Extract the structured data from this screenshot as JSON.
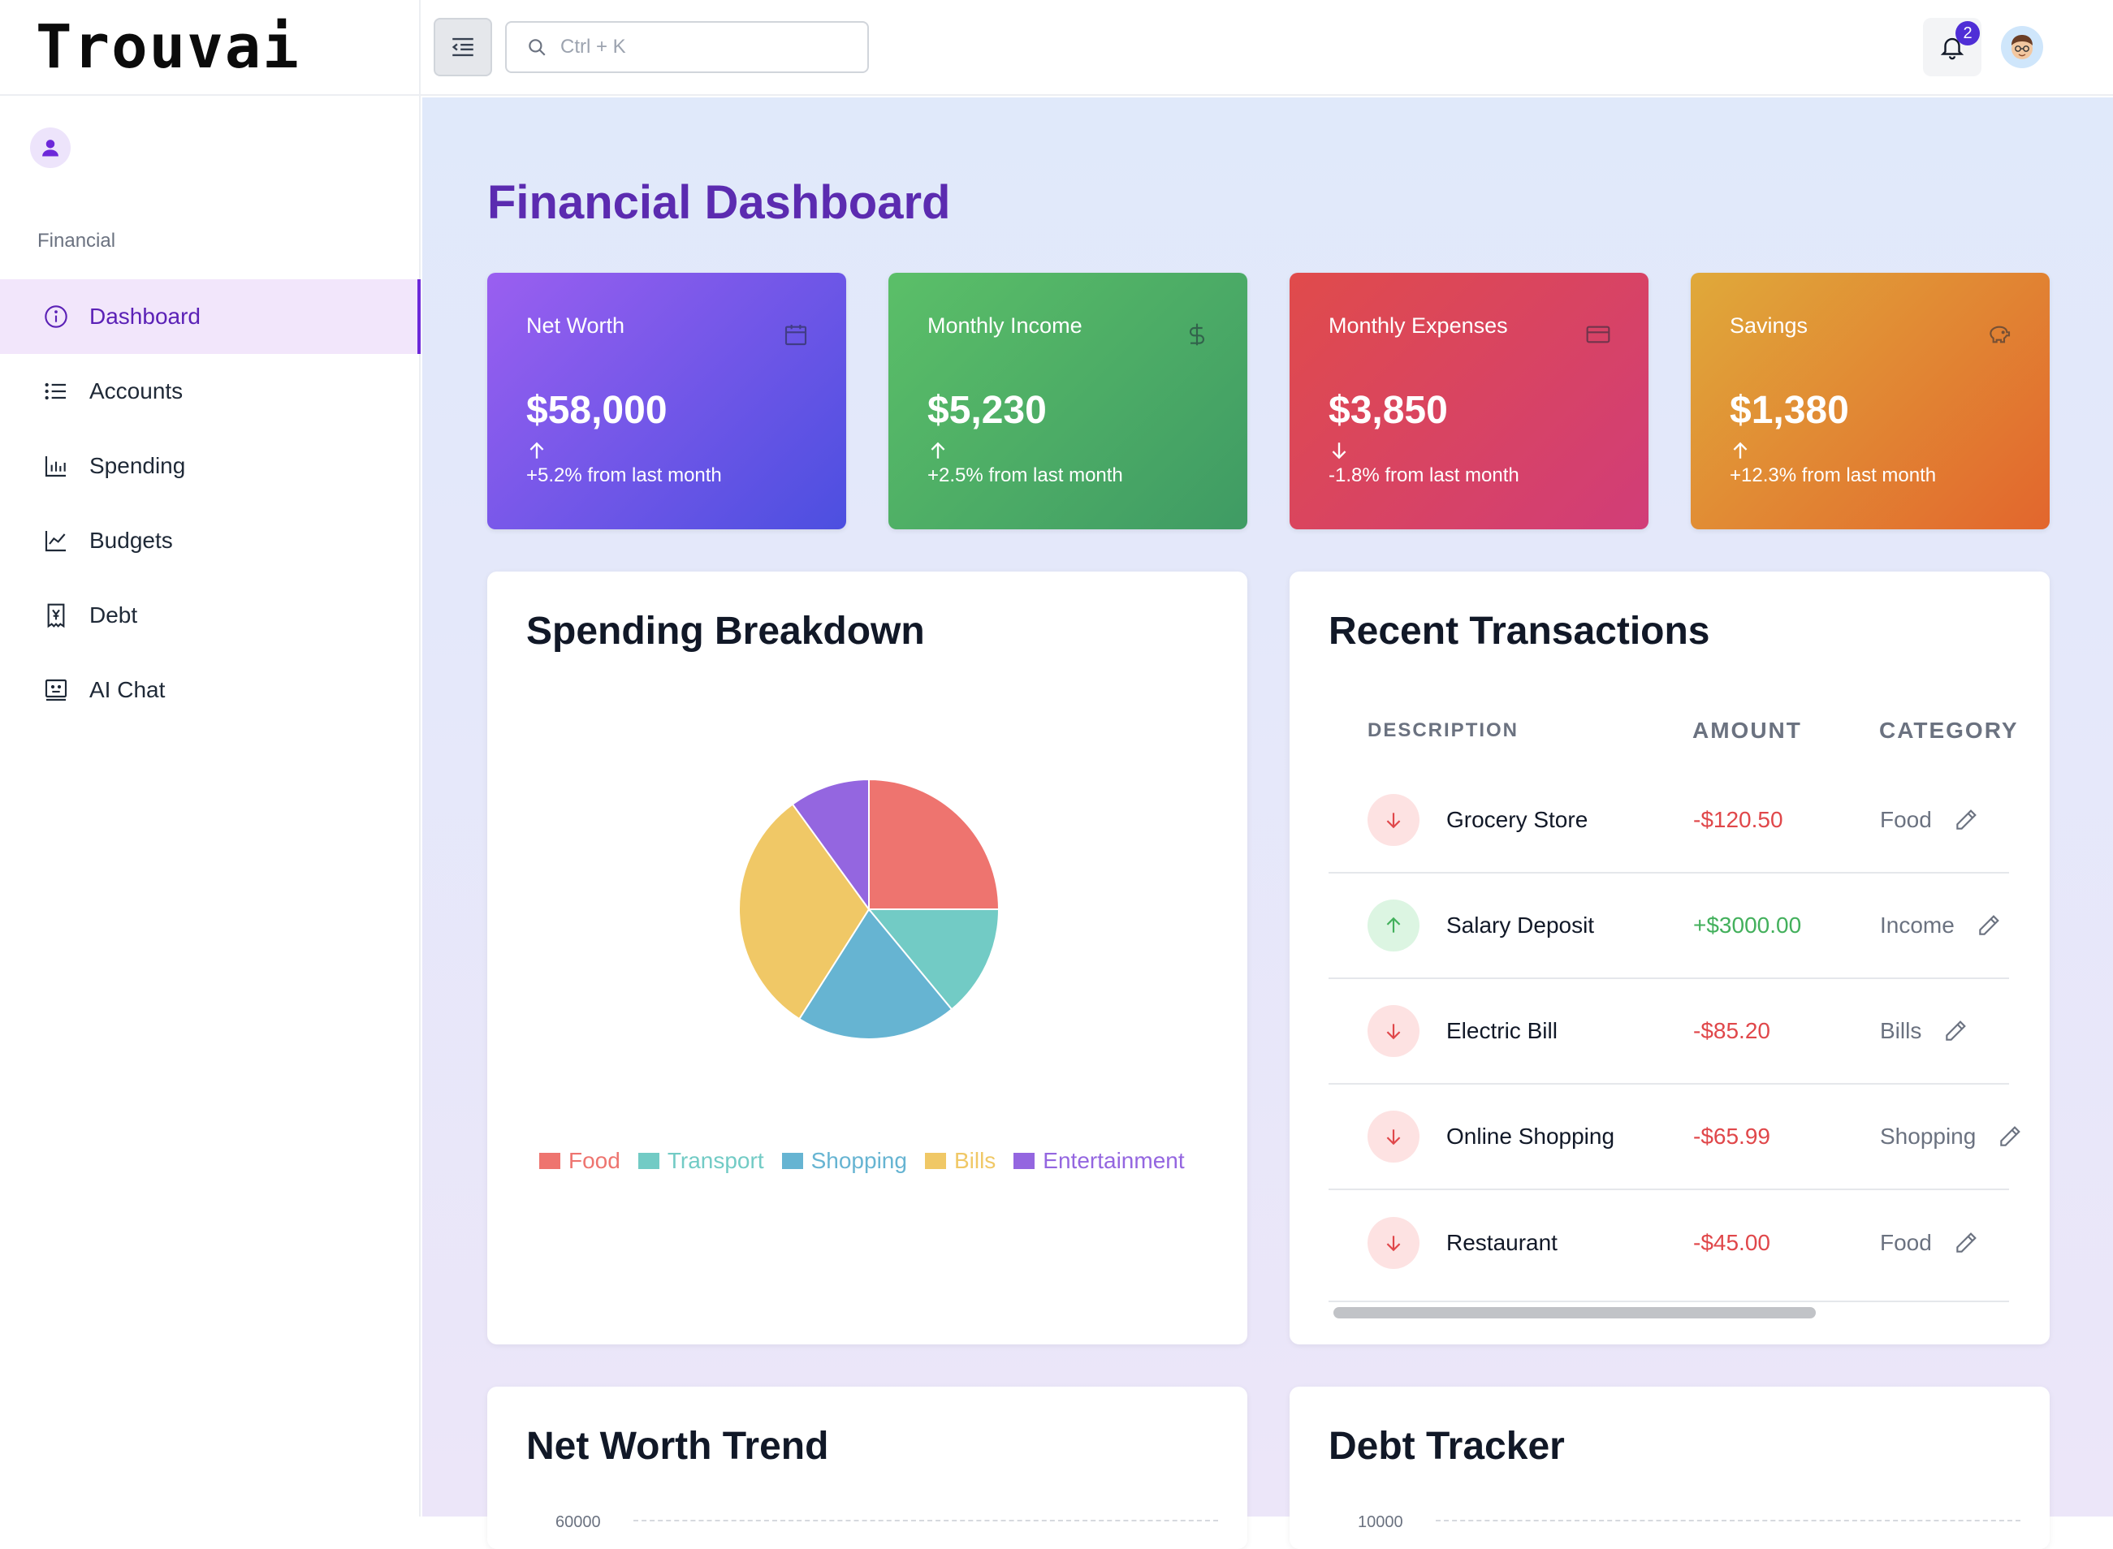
{
  "app": {
    "brand": "Trouvai"
  },
  "sidebar": {
    "section_label": "Financial",
    "items": [
      {
        "label": "Dashboard",
        "icon": "info-circle-icon",
        "active": true
      },
      {
        "label": "Accounts",
        "icon": "list-icon",
        "active": false
      },
      {
        "label": "Spending",
        "icon": "bar-chart-icon",
        "active": false
      },
      {
        "label": "Budgets",
        "icon": "line-chart-icon",
        "active": false
      },
      {
        "label": "Debt",
        "icon": "yen-receipt-icon",
        "active": false
      },
      {
        "label": "AI Chat",
        "icon": "chat-bot-icon",
        "active": false
      }
    ]
  },
  "topbar": {
    "search_placeholder": "Ctrl + K",
    "notification_count": "2"
  },
  "page": {
    "title": "Financial Dashboard"
  },
  "stats": [
    {
      "label": "Net Worth",
      "value": "$58,000",
      "change": "+5.2% from last month",
      "direction": "up",
      "icon": "calendar-icon"
    },
    {
      "label": "Monthly Income",
      "value": "$5,230",
      "change": "+2.5% from last month",
      "direction": "up",
      "icon": "dollar-icon"
    },
    {
      "label": "Monthly Expenses",
      "value": "$3,850",
      "change": "-1.8% from last month",
      "direction": "down",
      "icon": "credit-card-icon"
    },
    {
      "label": "Savings",
      "value": "$1,380",
      "change": "+12.3% from last month",
      "direction": "up",
      "icon": "piggy-bank-icon"
    }
  ],
  "spending": {
    "title": "Spending Breakdown",
    "chart_data": {
      "type": "pie",
      "categories": [
        "Food",
        "Transport",
        "Shopping",
        "Bills",
        "Entertainment"
      ],
      "values": [
        25,
        14,
        20,
        31,
        10
      ],
      "colors": [
        "#ee746f",
        "#72cbc5",
        "#66b4d2",
        "#f0c866",
        "#9466e0"
      ]
    }
  },
  "transactions": {
    "title": "Recent Transactions",
    "headers": {
      "description": "DESCRIPTION",
      "amount": "AMOUNT",
      "category": "CATEGORY"
    },
    "rows": [
      {
        "description": "Grocery Store",
        "amount": "-$120.50",
        "category": "Food",
        "direction": "down"
      },
      {
        "description": "Salary Deposit",
        "amount": "+$3000.00",
        "category": "Income",
        "direction": "up"
      },
      {
        "description": "Electric Bill",
        "amount": "-$85.20",
        "category": "Bills",
        "direction": "down"
      },
      {
        "description": "Online Shopping",
        "amount": "-$65.99",
        "category": "Shopping",
        "direction": "down"
      },
      {
        "description": "Restaurant",
        "amount": "-$45.00",
        "category": "Food",
        "direction": "down"
      }
    ]
  },
  "net_worth_trend": {
    "title": "Net Worth Trend",
    "axis_top_label": "60000"
  },
  "debt_tracker": {
    "title": "Debt Tracker",
    "axis_top_label": "10000"
  }
}
